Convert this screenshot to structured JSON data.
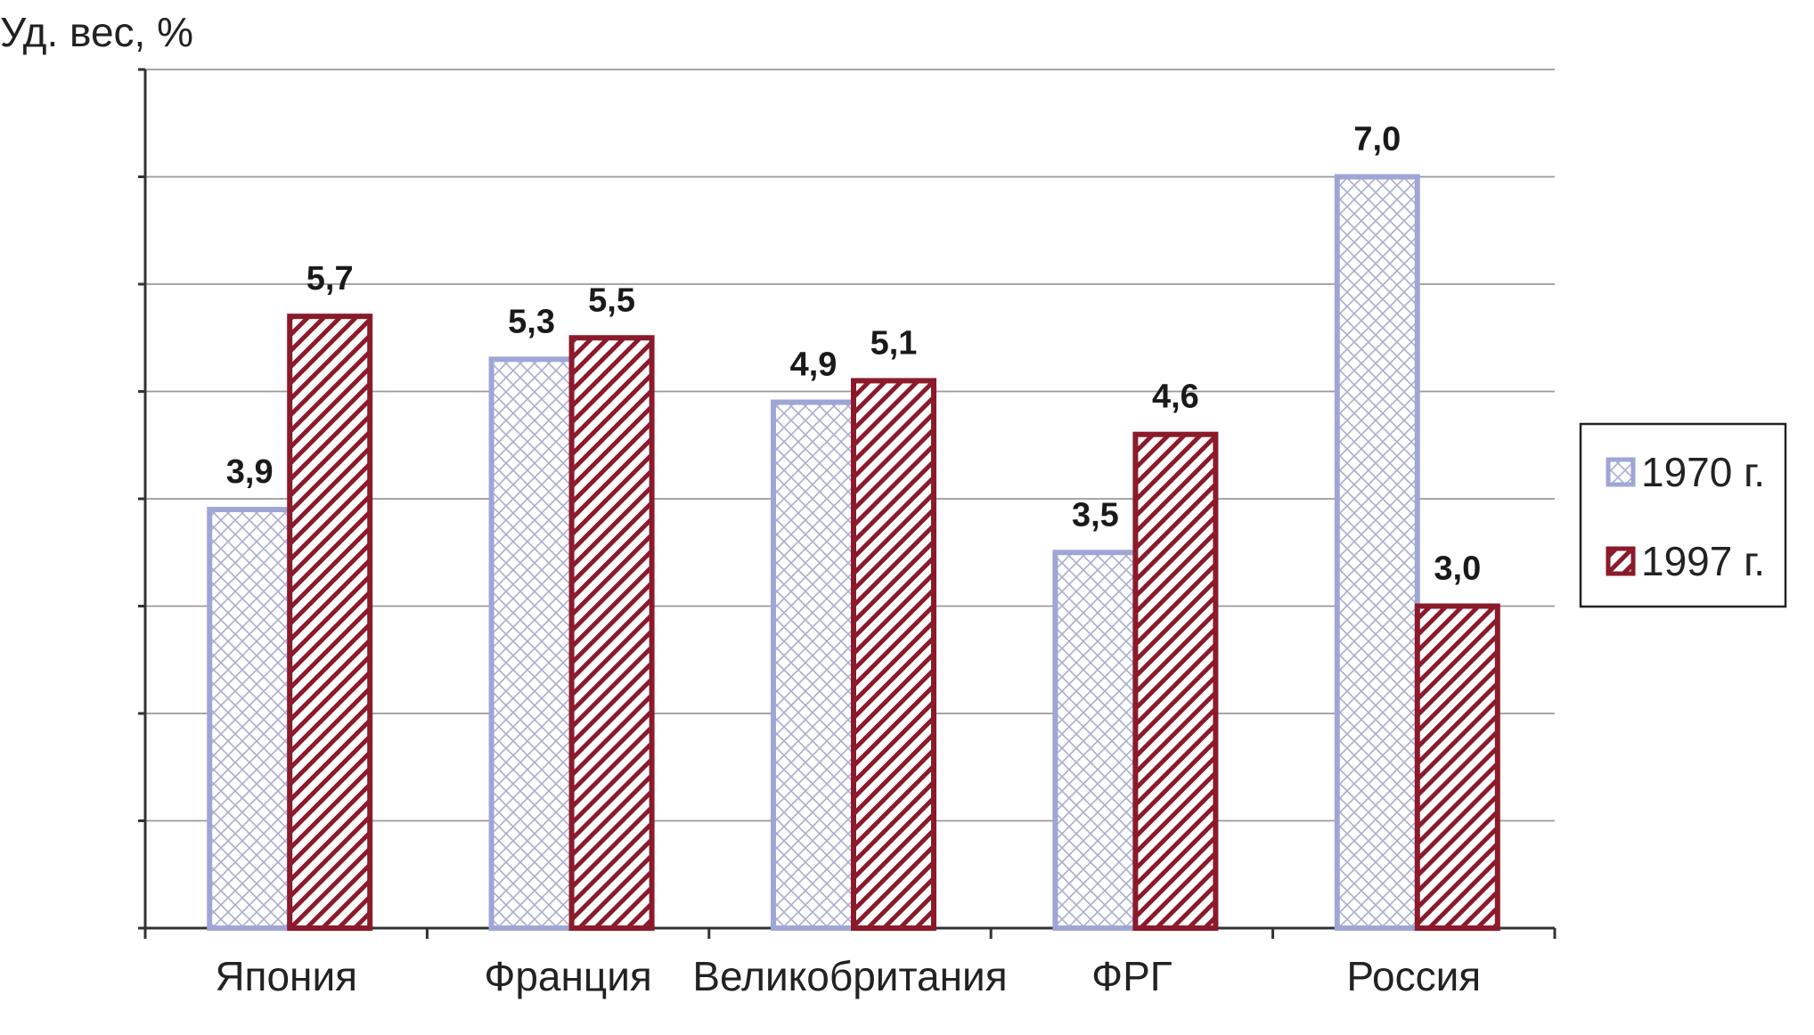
{
  "chart_data": {
    "type": "bar",
    "title": "",
    "xlabel": "",
    "ylabel": "Уд. вес, %",
    "categories": [
      "Япония",
      "Франция",
      "Великобритания",
      "ФРГ",
      "Россия"
    ],
    "series": [
      {
        "name": "1970 г.",
        "values": [
          3.9,
          5.3,
          4.9,
          3.5,
          7.0
        ],
        "labels": [
          "3,9",
          "5,3",
          "4,9",
          "3,5",
          "7,0"
        ],
        "color": "#9fa6d6",
        "pattern": "crosshatch"
      },
      {
        "name": "1997 г.",
        "values": [
          5.7,
          5.5,
          5.1,
          4.6,
          3.0
        ],
        "labels": [
          "5,7",
          "5,5",
          "5,1",
          "4,6",
          "3,0"
        ],
        "color": "#8b1a2b",
        "pattern": "diagonal"
      }
    ],
    "ylim": [
      0,
      8
    ],
    "grid": true,
    "y_tick_labels_shown": false,
    "legend_placement": "right"
  }
}
